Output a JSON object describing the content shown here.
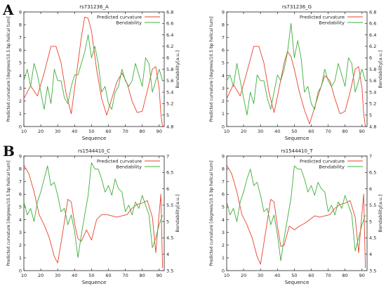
{
  "panel_letters": [
    "A",
    "B"
  ],
  "colors": {
    "curvature": "#e8412d",
    "bendability": "#3fae3a",
    "axis": "#222222"
  },
  "chart_data": [
    {
      "type": "line",
      "title": "rs731236_A",
      "xlabel": "Sequence",
      "ylabel": "Predicted curvature [degrees/10.5 bp helical turn]",
      "y2label": "Bendability[a.u.]",
      "xlim": [
        10,
        93
      ],
      "ylim": [
        0,
        9
      ],
      "y2lim": [
        4.8,
        6.8
      ],
      "xticks": [
        10,
        20,
        30,
        40,
        50,
        60,
        70,
        80,
        90
      ],
      "yticks": [
        0,
        1,
        2,
        3,
        4,
        5,
        6,
        7,
        8,
        9
      ],
      "y2ticks": [
        4.8,
        5,
        5.2,
        5.4,
        5.6,
        5.8,
        6,
        6.2,
        6.4,
        6.6,
        6.8
      ],
      "legend": "top-right",
      "series": [
        {
          "name": "Predicted curvature",
          "axis": "left",
          "color": "#e8412d",
          "x": [
            10,
            14,
            18,
            22,
            26,
            29,
            32,
            35,
            38,
            41,
            44,
            46,
            48,
            50,
            53,
            56,
            59,
            62,
            65,
            68,
            71,
            74,
            77,
            80,
            83,
            86,
            88,
            90,
            91,
            92
          ],
          "y": [
            2.2,
            3.2,
            2.4,
            4.2,
            6.3,
            6.3,
            5.0,
            2.6,
            1.0,
            4.0,
            7.0,
            8.6,
            8.5,
            7.5,
            4.5,
            2.2,
            0.9,
            2.2,
            3.5,
            4.2,
            3.4,
            2.0,
            1.1,
            1.2,
            2.8,
            4.5,
            4.7,
            3.0,
            1.0,
            0.0
          ]
        },
        {
          "name": "Bendability",
          "axis": "right",
          "color": "#3fae3a",
          "x": [
            10,
            12,
            14,
            16,
            18,
            20,
            22,
            24,
            26,
            28,
            30,
            32,
            34,
            36,
            38,
            40,
            42,
            44,
            46,
            48,
            50,
            52,
            54,
            56,
            58,
            60,
            62,
            64,
            66,
            68,
            70,
            72,
            74,
            76,
            78,
            80,
            82,
            84,
            86,
            88,
            90,
            92
          ],
          "y": [
            5.6,
            5.8,
            5.5,
            5.9,
            5.7,
            5.4,
            5.1,
            5.5,
            5.2,
            5.8,
            5.6,
            5.6,
            5.3,
            5.2,
            5.5,
            5.7,
            5.7,
            5.9,
            6.1,
            6.4,
            6.0,
            6.2,
            5.9,
            5.4,
            5.5,
            5.2,
            5.1,
            5.4,
            5.5,
            5.8,
            5.6,
            5.5,
            5.6,
            5.9,
            5.7,
            5.5,
            6.0,
            5.9,
            5.4,
            5.6,
            5.8,
            5.6
          ]
        }
      ]
    },
    {
      "type": "line",
      "title": "rs731236_G",
      "xlabel": "Sequence",
      "ylabel": "Predicted curvature [degrees/10.5 bp helical turn]",
      "y2label": "Bendability[a.u.]",
      "xlim": [
        10,
        93
      ],
      "ylim": [
        0,
        9
      ],
      "y2lim": [
        4.8,
        6.8
      ],
      "xticks": [
        10,
        20,
        30,
        40,
        50,
        60,
        70,
        80,
        90
      ],
      "yticks": [
        0,
        1,
        2,
        3,
        4,
        5,
        6,
        7,
        8,
        9
      ],
      "y2ticks": [
        4.8,
        5,
        5.2,
        5.4,
        5.6,
        5.8,
        6,
        6.2,
        6.4,
        6.6,
        6.8
      ],
      "legend": "top-right",
      "series": [
        {
          "name": "Predicted curvature",
          "axis": "left",
          "color": "#e8412d",
          "x": [
            10,
            14,
            18,
            22,
            26,
            29,
            32,
            35,
            38,
            41,
            44,
            46,
            48,
            50,
            53,
            56,
            59,
            62,
            65,
            68,
            71,
            74,
            77,
            80,
            83,
            86,
            88,
            90,
            91,
            92
          ],
          "y": [
            2.2,
            3.3,
            2.4,
            4.3,
            6.3,
            6.3,
            5.0,
            2.7,
            1.1,
            3.0,
            5.0,
            5.9,
            5.5,
            4.5,
            2.7,
            1.3,
            0.2,
            1.5,
            2.8,
            4.0,
            3.6,
            2.2,
            1.0,
            1.2,
            2.7,
            4.5,
            4.7,
            3.0,
            1.0,
            0.0
          ]
        },
        {
          "name": "Bendability",
          "axis": "right",
          "color": "#3fae3a",
          "x": [
            10,
            12,
            14,
            16,
            18,
            20,
            22,
            24,
            26,
            28,
            30,
            32,
            34,
            36,
            38,
            40,
            42,
            44,
            46,
            48,
            50,
            52,
            54,
            56,
            58,
            60,
            62,
            64,
            66,
            68,
            70,
            72,
            74,
            76,
            78,
            80,
            82,
            84,
            86,
            88,
            90,
            92
          ],
          "y": [
            5.6,
            5.7,
            5.5,
            5.9,
            5.6,
            5.3,
            5.0,
            5.4,
            5.2,
            5.7,
            5.6,
            5.6,
            5.3,
            5.1,
            5.4,
            5.7,
            5.6,
            5.8,
            6.1,
            6.6,
            6.0,
            6.3,
            6.0,
            5.4,
            5.5,
            5.2,
            5.1,
            5.4,
            5.5,
            5.8,
            5.6,
            5.5,
            5.6,
            5.9,
            5.7,
            5.5,
            6.0,
            5.9,
            5.4,
            5.6,
            5.8,
            5.6
          ]
        }
      ]
    },
    {
      "type": "line",
      "title": "rs1544410_C",
      "xlabel": "Sequence",
      "ylabel": "Predicted curvature [degrees/10.5 bp helical turn]",
      "y2label": "Bendability[a.u.]",
      "xlim": [
        10,
        93
      ],
      "ylim": [
        0,
        9
      ],
      "y2lim": [
        3.5,
        7
      ],
      "xticks": [
        10,
        20,
        30,
        40,
        50,
        60,
        70,
        80,
        90
      ],
      "yticks": [
        0,
        1,
        2,
        3,
        4,
        5,
        6,
        7,
        8,
        9
      ],
      "y2ticks": [
        3.5,
        4,
        4.5,
        5,
        5.5,
        6,
        6.5,
        7
      ],
      "legend": "top-right",
      "series": [
        {
          "name": "Predicted curvature",
          "axis": "left",
          "color": "#e8412d",
          "x": [
            10,
            13,
            16,
            19,
            22,
            25,
            28,
            30,
            33,
            36,
            38,
            40,
            42,
            44,
            47,
            50,
            53,
            56,
            59,
            62,
            65,
            68,
            71,
            74,
            77,
            80,
            83,
            86,
            88,
            90,
            91,
            92
          ],
          "y": [
            8.3,
            7.6,
            6.2,
            4.4,
            3.6,
            2.6,
            1.1,
            0.6,
            3.0,
            5.6,
            5.4,
            3.7,
            2.5,
            2.3,
            3.2,
            2.4,
            4.0,
            4.4,
            4.4,
            4.3,
            4.2,
            4.3,
            4.4,
            4.9,
            5.2,
            5.3,
            5.5,
            4.2,
            1.4,
            4.5,
            6.0,
            0.2
          ]
        },
        {
          "name": "Bendability",
          "axis": "right",
          "color": "#3fae3a",
          "x": [
            10,
            12,
            14,
            16,
            18,
            20,
            22,
            24,
            26,
            28,
            30,
            32,
            34,
            36,
            38,
            40,
            42,
            44,
            46,
            48,
            50,
            52,
            54,
            56,
            58,
            60,
            62,
            64,
            66,
            68,
            70,
            72,
            74,
            76,
            78,
            80,
            82,
            84,
            86,
            88,
            90,
            92
          ],
          "y": [
            5.6,
            5.2,
            5.4,
            5.0,
            5.6,
            5.9,
            6.3,
            6.7,
            6.1,
            6.2,
            5.8,
            5.3,
            5.4,
            4.9,
            5.2,
            4.7,
            3.9,
            4.6,
            5.2,
            5.8,
            6.8,
            6.6,
            6.6,
            6.3,
            5.9,
            6.1,
            5.8,
            6.3,
            6.0,
            5.9,
            5.3,
            5.5,
            5.2,
            5.6,
            5.4,
            5.8,
            5.5,
            5.2,
            4.2,
            4.5,
            4.9,
            5.2
          ]
        }
      ]
    },
    {
      "type": "line",
      "title": "rs1544410_T",
      "xlabel": "Sequence",
      "ylabel": "Predicted curvature [degrees/10.5 bp helical turn]",
      "y2label": "Bendability[a.u.]",
      "xlim": [
        10,
        93
      ],
      "ylim": [
        0,
        9
      ],
      "y2lim": [
        3.5,
        7
      ],
      "xticks": [
        10,
        20,
        30,
        40,
        50,
        60,
        70,
        80,
        90
      ],
      "yticks": [
        0,
        1,
        2,
        3,
        4,
        5,
        6,
        7,
        8,
        9
      ],
      "y2ticks": [
        3.5,
        4,
        4.5,
        5,
        5.5,
        6,
        6.5,
        7
      ],
      "legend": "top-right",
      "series": [
        {
          "name": "Predicted curvature",
          "axis": "left",
          "color": "#e8412d",
          "x": [
            10,
            13,
            16,
            19,
            22,
            25,
            28,
            30,
            33,
            36,
            38,
            40,
            42,
            44,
            47,
            50,
            53,
            56,
            59,
            62,
            65,
            68,
            71,
            74,
            77,
            80,
            83,
            86,
            88,
            90,
            91,
            92
          ],
          "y": [
            8.3,
            7.6,
            6.2,
            4.4,
            3.6,
            2.6,
            1.1,
            0.5,
            3.0,
            5.6,
            5.4,
            3.5,
            1.9,
            2.0,
            3.5,
            3.2,
            3.5,
            3.7,
            4.0,
            4.3,
            4.2,
            4.3,
            4.4,
            4.9,
            5.2,
            5.3,
            5.5,
            4.2,
            1.4,
            4.5,
            6.0,
            0.2
          ]
        },
        {
          "name": "Bendability",
          "axis": "right",
          "color": "#3fae3a",
          "x": [
            10,
            12,
            14,
            16,
            18,
            20,
            22,
            24,
            26,
            28,
            30,
            32,
            34,
            36,
            38,
            40,
            42,
            44,
            46,
            48,
            50,
            52,
            54,
            56,
            58,
            60,
            62,
            64,
            66,
            68,
            70,
            72,
            74,
            76,
            78,
            80,
            82,
            84,
            86,
            88,
            90,
            92
          ],
          "y": [
            5.6,
            5.2,
            5.4,
            5.0,
            5.6,
            5.9,
            6.3,
            6.6,
            6.1,
            6.2,
            5.8,
            5.3,
            5.4,
            4.9,
            5.2,
            4.6,
            3.8,
            4.5,
            5.1,
            5.7,
            6.7,
            6.6,
            6.6,
            6.3,
            5.9,
            6.1,
            5.8,
            6.2,
            6.0,
            5.9,
            5.3,
            5.5,
            5.2,
            5.6,
            5.4,
            5.8,
            5.5,
            5.2,
            4.1,
            4.5,
            4.9,
            5.2
          ]
        }
      ]
    }
  ]
}
